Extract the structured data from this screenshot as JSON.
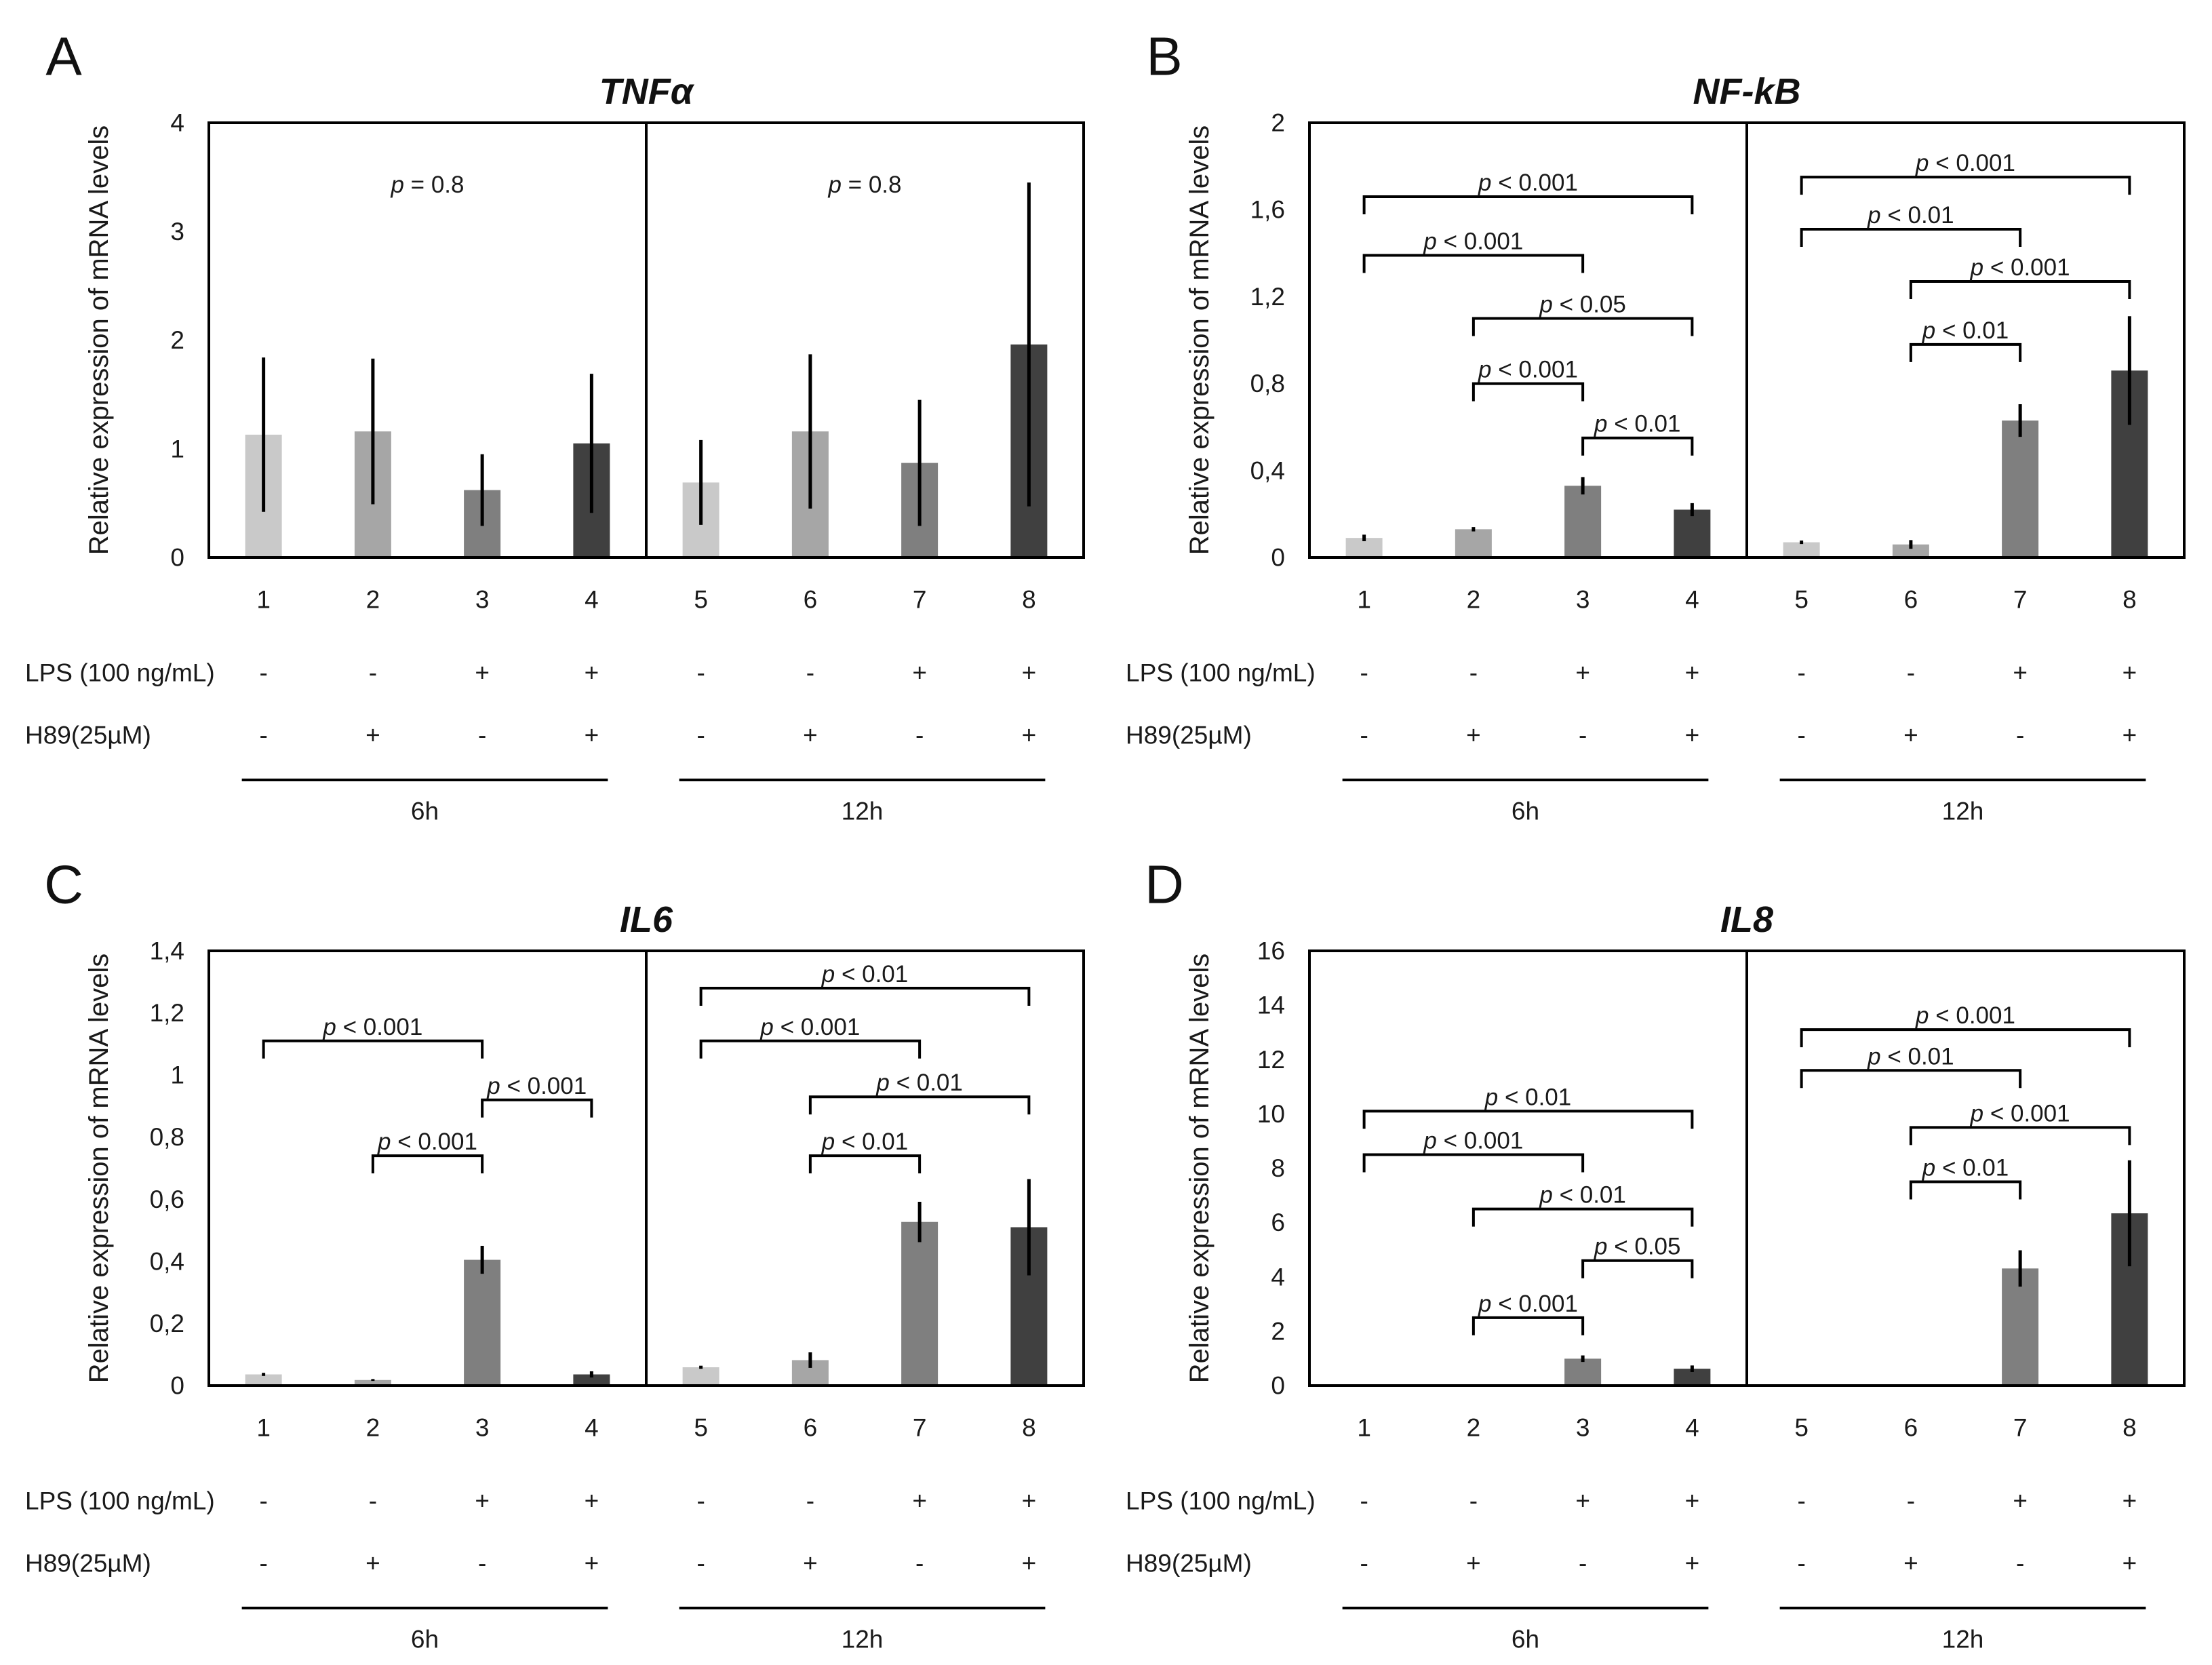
{
  "chart_data": [
    {
      "panel": "A",
      "type": "bar",
      "title": "TNFα",
      "xlabel": "",
      "ylabel": "Relative expression of mRNA levels",
      "ylim": [
        0,
        4
      ],
      "yticks": [
        0,
        1,
        2,
        3,
        4
      ],
      "ytick_labels": [
        "0",
        "1",
        "2",
        "3",
        "4"
      ],
      "grid": false,
      "categories": [
        "1",
        "2",
        "3",
        "4",
        "5",
        "6",
        "7",
        "8"
      ],
      "values": [
        1.13,
        1.16,
        0.62,
        1.05,
        0.69,
        1.16,
        0.87,
        1.96
      ],
      "errors": [
        0.71,
        0.67,
        0.33,
        0.64,
        0.39,
        0.71,
        0.58,
        1.49
      ],
      "bar_colors": [
        "#c9c9c9",
        "#a6a6a6",
        "#7f7f7f",
        "#404040",
        "#c9c9c9",
        "#a6a6a6",
        "#7f7f7f",
        "#404040"
      ],
      "annotations": [
        {
          "from": "1",
          "to": "4",
          "y": 3.3,
          "label": "p = 0.8",
          "bracket": false
        },
        {
          "from": "5",
          "to": "8",
          "y": 3.3,
          "label": "p = 0.8",
          "bracket": false
        }
      ],
      "rows": [
        {
          "label": "LPS (100 ng/mL)",
          "values": [
            "-",
            "-",
            "+",
            "+",
            "-",
            "-",
            "+",
            "+"
          ]
        },
        {
          "label": "H89(25µM)",
          "values": [
            "-",
            "+",
            "-",
            "+",
            "-",
            "+",
            "-",
            "+"
          ]
        }
      ],
      "groups": [
        {
          "label": "6h",
          "from": "1",
          "to": "4"
        },
        {
          "label": "12h",
          "from": "5",
          "to": "8"
        }
      ]
    },
    {
      "panel": "B",
      "type": "bar",
      "title": "NF-kB",
      "xlabel": "",
      "ylabel": "Relative expression of mRNA levels",
      "ylim": [
        0,
        2
      ],
      "yticks": [
        0,
        0.4,
        0.8,
        1.2,
        1.6,
        2
      ],
      "ytick_labels": [
        "0",
        "0,4",
        "0,8",
        "1,2",
        "1,6",
        "2"
      ],
      "grid": false,
      "categories": [
        "1",
        "2",
        "3",
        "4",
        "5",
        "6",
        "7",
        "8"
      ],
      "values": [
        0.09,
        0.13,
        0.33,
        0.22,
        0.07,
        0.06,
        0.63,
        0.86
      ],
      "errors": [
        0.015,
        0.01,
        0.04,
        0.03,
        0.008,
        0.02,
        0.075,
        0.25
      ],
      "bar_colors": [
        "#c9c9c9",
        "#a6a6a6",
        "#7f7f7f",
        "#404040",
        "#c9c9c9",
        "#a6a6a6",
        "#7f7f7f",
        "#404040"
      ],
      "annotations": [
        {
          "from": "1",
          "to": "4",
          "y": 1.66,
          "label": "p < 0.001",
          "bracket": true
        },
        {
          "from": "1",
          "to": "3",
          "y": 1.39,
          "label": "p < 0.001",
          "bracket": true
        },
        {
          "from": "2",
          "to": "4",
          "y": 1.1,
          "label": "p < 0.05",
          "bracket": true
        },
        {
          "from": "2",
          "to": "3",
          "y": 0.8,
          "label": "p < 0.001",
          "bracket": true
        },
        {
          "from": "3",
          "to": "4",
          "y": 0.55,
          "label": "p < 0.01",
          "bracket": true
        },
        {
          "from": "5",
          "to": "8",
          "y": 1.75,
          "label": "p < 0.001",
          "bracket": true
        },
        {
          "from": "5",
          "to": "7",
          "y": 1.51,
          "label": "p < 0.01",
          "bracket": true
        },
        {
          "from": "6",
          "to": "8",
          "y": 1.27,
          "label": "p < 0.001",
          "bracket": true
        },
        {
          "from": "6",
          "to": "7",
          "y": 0.98,
          "label": "p < 0.01",
          "bracket": true
        }
      ],
      "rows": [
        {
          "label": "LPS (100 ng/mL)",
          "values": [
            "-",
            "-",
            "+",
            "+",
            "-",
            "-",
            "+",
            "+"
          ]
        },
        {
          "label": "H89(25µM)",
          "values": [
            "-",
            "+",
            "-",
            "+",
            "-",
            "+",
            "-",
            "+"
          ]
        }
      ],
      "groups": [
        {
          "label": "6h",
          "from": "1",
          "to": "4"
        },
        {
          "label": "12h",
          "from": "5",
          "to": "8"
        }
      ]
    },
    {
      "panel": "C",
      "type": "bar",
      "title": "IL6",
      "xlabel": "",
      "ylabel": "Relative expression of mRNA levels",
      "ylim": [
        0,
        1.4
      ],
      "yticks": [
        0,
        0.2,
        0.4,
        0.6,
        0.8,
        1,
        1.2,
        1.4
      ],
      "ytick_labels": [
        "0",
        "0,2",
        "0,4",
        "0,6",
        "0,8",
        "1",
        "1,2",
        "1,4"
      ],
      "grid": false,
      "categories": [
        "1",
        "2",
        "3",
        "4",
        "5",
        "6",
        "7",
        "8"
      ],
      "values": [
        0.036,
        0.018,
        0.405,
        0.036,
        0.059,
        0.082,
        0.527,
        0.51
      ],
      "errors": [
        0.005,
        0.003,
        0.045,
        0.01,
        0.005,
        0.025,
        0.065,
        0.155
      ],
      "bar_colors": [
        "#c9c9c9",
        "#a6a6a6",
        "#7f7f7f",
        "#404040",
        "#c9c9c9",
        "#a6a6a6",
        "#7f7f7f",
        "#404040"
      ],
      "annotations": [
        {
          "from": "1",
          "to": "3",
          "y": 1.11,
          "label": "p < 0.001",
          "bracket": true
        },
        {
          "from": "3",
          "to": "4",
          "y": 0.92,
          "label": "p < 0.001",
          "bracket": true
        },
        {
          "from": "2",
          "to": "3",
          "y": 0.74,
          "label": "p < 0.001",
          "bracket": true
        },
        {
          "from": "5",
          "to": "8",
          "y": 1.28,
          "label": "p < 0.01",
          "bracket": true
        },
        {
          "from": "5",
          "to": "7",
          "y": 1.11,
          "label": "p < 0.001",
          "bracket": true
        },
        {
          "from": "6",
          "to": "8",
          "y": 0.93,
          "label": "p < 0.01",
          "bracket": true
        },
        {
          "from": "6",
          "to": "7",
          "y": 0.74,
          "label": "p < 0.01",
          "bracket": true
        }
      ],
      "rows": [
        {
          "label": "LPS (100 ng/mL)",
          "values": [
            "-",
            "-",
            "+",
            "+",
            "-",
            "-",
            "+",
            "+"
          ]
        },
        {
          "label": "H89(25µM)",
          "values": [
            "-",
            "+",
            "-",
            "+",
            "-",
            "+",
            "-",
            "+"
          ]
        }
      ],
      "groups": [
        {
          "label": "6h",
          "from": "1",
          "to": "4"
        },
        {
          "label": "12h",
          "from": "5",
          "to": "8"
        }
      ]
    },
    {
      "panel": "D",
      "type": "bar",
      "title": "IL8",
      "xlabel": "",
      "ylabel": "Relative expression of mRNA levels",
      "ylim": [
        0,
        16
      ],
      "yticks": [
        0,
        2,
        4,
        6,
        8,
        10,
        12,
        14,
        16
      ],
      "ytick_labels": [
        "0",
        "2",
        "4",
        "6",
        "8",
        "10",
        "12",
        "14",
        "16"
      ],
      "grid": false,
      "categories": [
        "1",
        "2",
        "3",
        "4",
        "5",
        "6",
        "7",
        "8"
      ],
      "values": [
        0.03,
        0.03,
        0.99,
        0.62,
        0.03,
        0.03,
        4.31,
        6.34
      ],
      "errors": [
        0,
        0,
        0.12,
        0.12,
        0,
        0,
        0.67,
        1.95
      ],
      "bar_colors": [
        "#c9c9c9",
        "#a6a6a6",
        "#7f7f7f",
        "#404040",
        "#c9c9c9",
        "#a6a6a6",
        "#7f7f7f",
        "#404040"
      ],
      "annotations": [
        {
          "from": "1",
          "to": "4",
          "y": 10.1,
          "label": "p < 0.01",
          "bracket": true
        },
        {
          "from": "1",
          "to": "3",
          "y": 8.5,
          "label": "p < 0.001",
          "bracket": true
        },
        {
          "from": "2",
          "to": "4",
          "y": 6.5,
          "label": "p < 0.01",
          "bracket": true
        },
        {
          "from": "3",
          "to": "4",
          "y": 4.6,
          "label": "p < 0.05",
          "bracket": true
        },
        {
          "from": "2",
          "to": "3",
          "y": 2.5,
          "label": "p < 0.001",
          "bracket": true
        },
        {
          "from": "5",
          "to": "8",
          "y": 13.1,
          "label": "p < 0.001",
          "bracket": true
        },
        {
          "from": "5",
          "to": "7",
          "y": 11.6,
          "label": "p < 0.01",
          "bracket": true
        },
        {
          "from": "6",
          "to": "8",
          "y": 9.5,
          "label": "p < 0.001",
          "bracket": true
        },
        {
          "from": "6",
          "to": "7",
          "y": 7.5,
          "label": "p < 0.01",
          "bracket": true
        }
      ],
      "rows": [
        {
          "label": "LPS (100 ng/mL)",
          "values": [
            "-",
            "-",
            "+",
            "+",
            "-",
            "-",
            "+",
            "+"
          ]
        },
        {
          "label": "H89(25µM)",
          "values": [
            "-",
            "+",
            "-",
            "+",
            "-",
            "+",
            "-",
            "+"
          ]
        }
      ],
      "groups": [
        {
          "label": "6h",
          "from": "1",
          "to": "4"
        },
        {
          "label": "12h",
          "from": "5",
          "to": "8"
        }
      ]
    }
  ]
}
